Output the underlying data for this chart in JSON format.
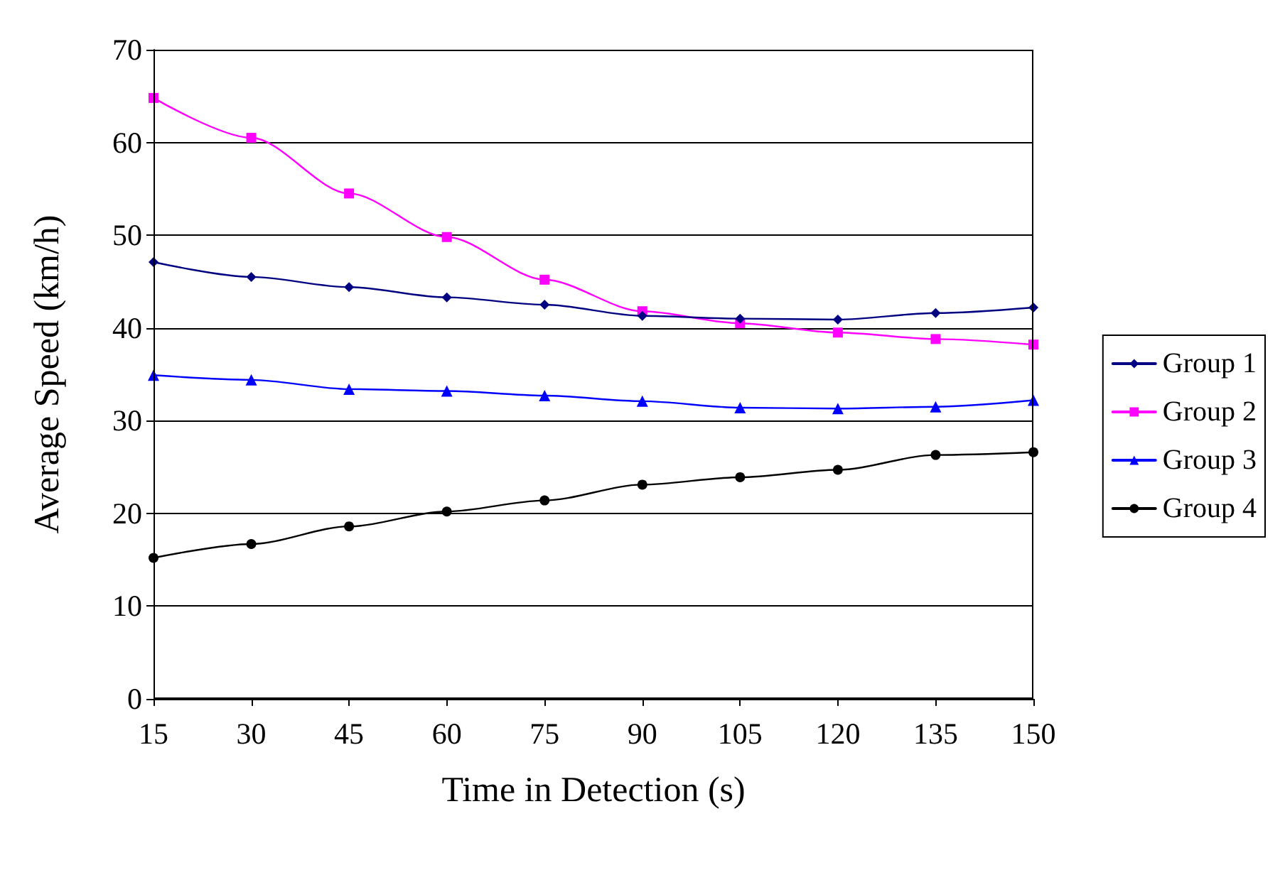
{
  "chart_data": {
    "type": "line",
    "xlabel": "Time in Detection (s)",
    "ylabel": "Average Speed (km/h)",
    "x": [
      15,
      30,
      45,
      60,
      75,
      90,
      105,
      120,
      135,
      150
    ],
    "series": [
      {
        "name": "Group 1",
        "color": "#000080",
        "marker": "diamond",
        "values": [
          47.1,
          45.5,
          44.4,
          43.3,
          42.5,
          41.3,
          41.0,
          40.9,
          41.6,
          42.2
        ]
      },
      {
        "name": "Group 2",
        "color": "#ff00ff",
        "marker": "square",
        "values": [
          64.8,
          60.5,
          54.5,
          49.8,
          45.2,
          41.8,
          40.5,
          39.5,
          38.8,
          38.2
        ]
      },
      {
        "name": "Group 3",
        "color": "#0000ff",
        "marker": "triangle",
        "values": [
          34.9,
          34.4,
          33.4,
          33.2,
          32.7,
          32.1,
          31.4,
          31.3,
          31.5,
          32.2
        ]
      },
      {
        "name": "Group 4",
        "color": "#000000",
        "marker": "circle",
        "values": [
          15.2,
          16.7,
          18.6,
          20.2,
          21.4,
          23.1,
          23.9,
          24.7,
          26.3,
          26.6
        ]
      }
    ],
    "xlim": [
      15,
      150
    ],
    "xticks": [
      15,
      30,
      45,
      60,
      75,
      90,
      105,
      120,
      135,
      150
    ],
    "ylim": [
      0,
      70
    ],
    "yticks": [
      0,
      10,
      20,
      30,
      40,
      50,
      60,
      70
    ],
    "grid": "y",
    "legend": "right"
  }
}
